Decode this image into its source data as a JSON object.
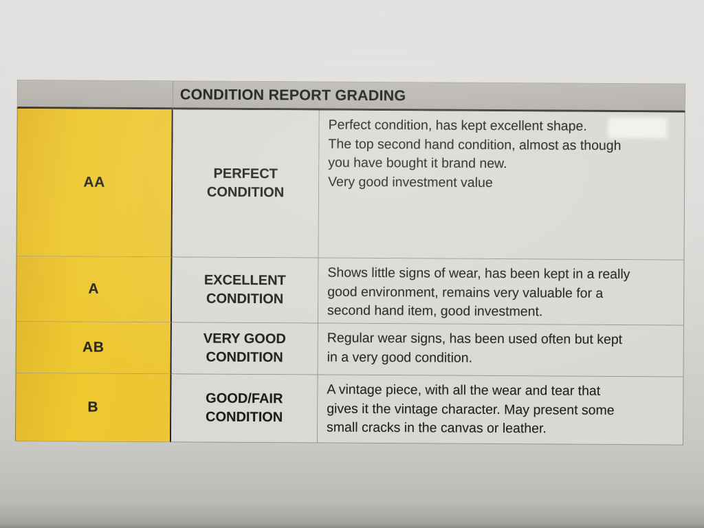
{
  "table": {
    "title": "CONDITION REPORT GRADING",
    "rows": [
      {
        "grade": "AA",
        "condition": "PERFECT CONDITION",
        "description_paragraphs": [
          [
            "Perfect condition, has kept excellent shape."
          ],
          [
            "The top second hand condition, almost as though",
            "you have bought it brand new."
          ],
          [
            "Very good investment value"
          ]
        ]
      },
      {
        "grade": "A",
        "condition": "EXCELLENT CONDITION",
        "description_paragraphs": [
          [
            "Shows little signs of wear, has been kept in a really",
            "good environment, remains very valuable for a",
            "second hand item, good investment."
          ]
        ]
      },
      {
        "grade": "AB",
        "condition": "VERY GOOD CONDITION",
        "description_paragraphs": [
          [
            "Regular wear signs, has been used often but kept",
            "in a very good condition."
          ]
        ]
      },
      {
        "grade": "B",
        "condition": "GOOD/FAIR CONDITION",
        "description_paragraphs": [
          [
            "A vintage piece, with all the wear and tear that",
            "gives it the vintage character. May present some",
            "small cracks in the canvas or leather."
          ]
        ]
      }
    ],
    "colors": {
      "grade_column_yellow": "#EEC82F",
      "header_band_gray": "#B7B4AE",
      "cell_background": "#DAD8D4",
      "text": "#1B1B19"
    }
  }
}
